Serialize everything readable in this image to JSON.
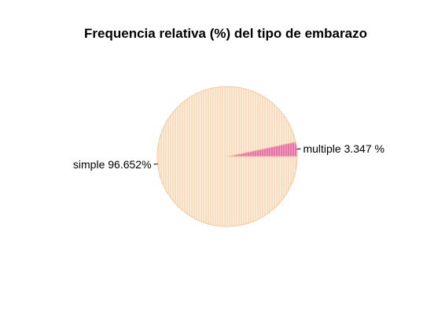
{
  "chart_data": {
    "type": "pie",
    "title": "Frequencia relativa (%) del tipo de embarazo",
    "slices": [
      {
        "label": "multiple 3.347 %",
        "category": "multiple",
        "value": 3.347,
        "color": "#f4a6c8",
        "hatch": "#e23a82"
      },
      {
        "label": "simple 96.652%",
        "category": "simple",
        "value": 96.652,
        "color": "#fdf1e3",
        "hatch": "#f6c99a"
      }
    ],
    "start_angle_deg": 0,
    "direction": "counterclockwise",
    "border_color": "#f3c9a3"
  }
}
